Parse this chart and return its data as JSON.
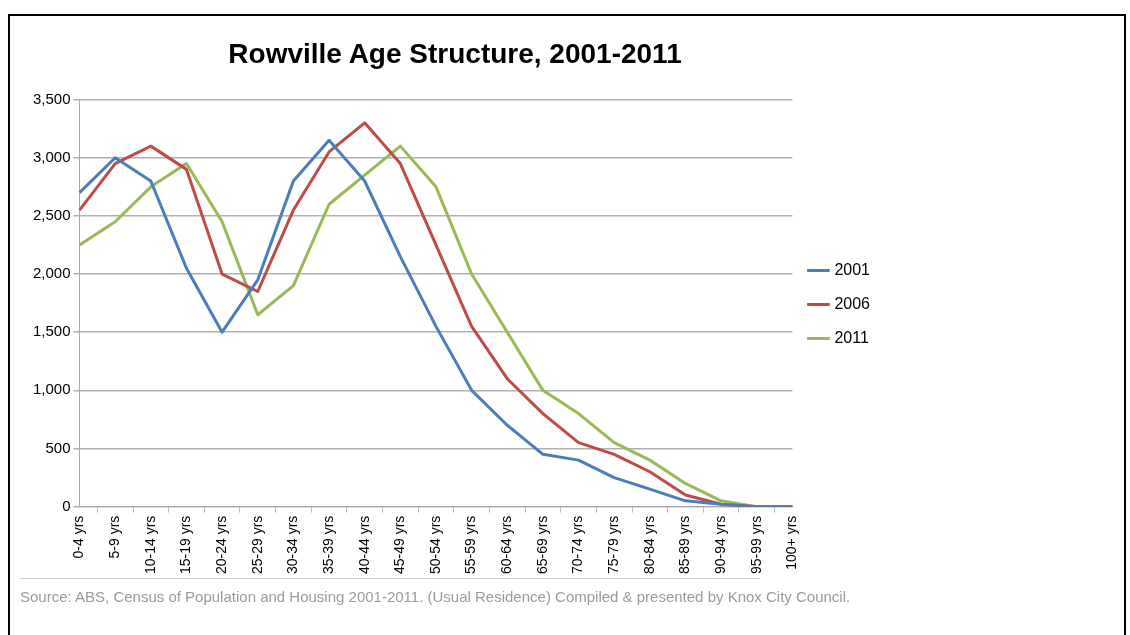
{
  "chart_data": {
    "type": "line",
    "title": "Rowville Age Structure, 2001-2011",
    "categories": [
      "0-4 yrs",
      "5-9 yrs",
      "10-14 yrs",
      "15-19 yrs",
      "20-24 yrs",
      "25-29 yrs",
      "30-34 yrs",
      "35-39 yrs",
      "40-44 yrs",
      "45-49 yrs",
      "50-54 yrs",
      "55-59 yrs",
      "60-64 yrs",
      "65-69 yrs",
      "70-74 yrs",
      "75-79 yrs",
      "80-84 yrs",
      "85-89 yrs",
      "90-94 yrs",
      "95-99 yrs",
      "100+ yrs"
    ],
    "series": [
      {
        "name": "2001",
        "color": "#4a7ebb",
        "values": [
          2700,
          3000,
          2800,
          2050,
          1500,
          1950,
          2800,
          3150,
          2800,
          2150,
          1550,
          1000,
          700,
          450,
          400,
          250,
          150,
          50,
          20,
          0,
          0
        ]
      },
      {
        "name": "2006",
        "color": "#be4b48",
        "values": [
          2550,
          2950,
          3100,
          2900,
          2000,
          1850,
          2550,
          3050,
          3300,
          2950,
          2250,
          1550,
          1100,
          800,
          550,
          450,
          300,
          100,
          20,
          0,
          0
        ]
      },
      {
        "name": "2011",
        "color": "#98b954",
        "values": [
          2250,
          2450,
          2750,
          2950,
          2450,
          1650,
          1900,
          2600,
          2850,
          3100,
          2750,
          2000,
          1500,
          1000,
          800,
          550,
          400,
          200,
          50,
          0,
          0
        ]
      }
    ],
    "ylim": [
      0,
      3500
    ],
    "yticks": [
      0,
      500,
      {
        "value": 1000,
        "label": "1,000"
      },
      {
        "value": 1500,
        "label": "1,500"
      },
      {
        "value": 2000,
        "label": "2,000"
      },
      {
        "value": 2500,
        "label": "2,500"
      },
      {
        "value": 3000,
        "label": "3,000"
      },
      {
        "value": 3500,
        "label": "3,500"
      }
    ],
    "grid": "y",
    "legend": "right",
    "marker": "none",
    "line_style": "solid",
    "annotations": [
      "Source: ABS, Census of Population and Housing  2001-2011. (Usual Residence) Compiled & presented by Knox City Council."
    ]
  }
}
